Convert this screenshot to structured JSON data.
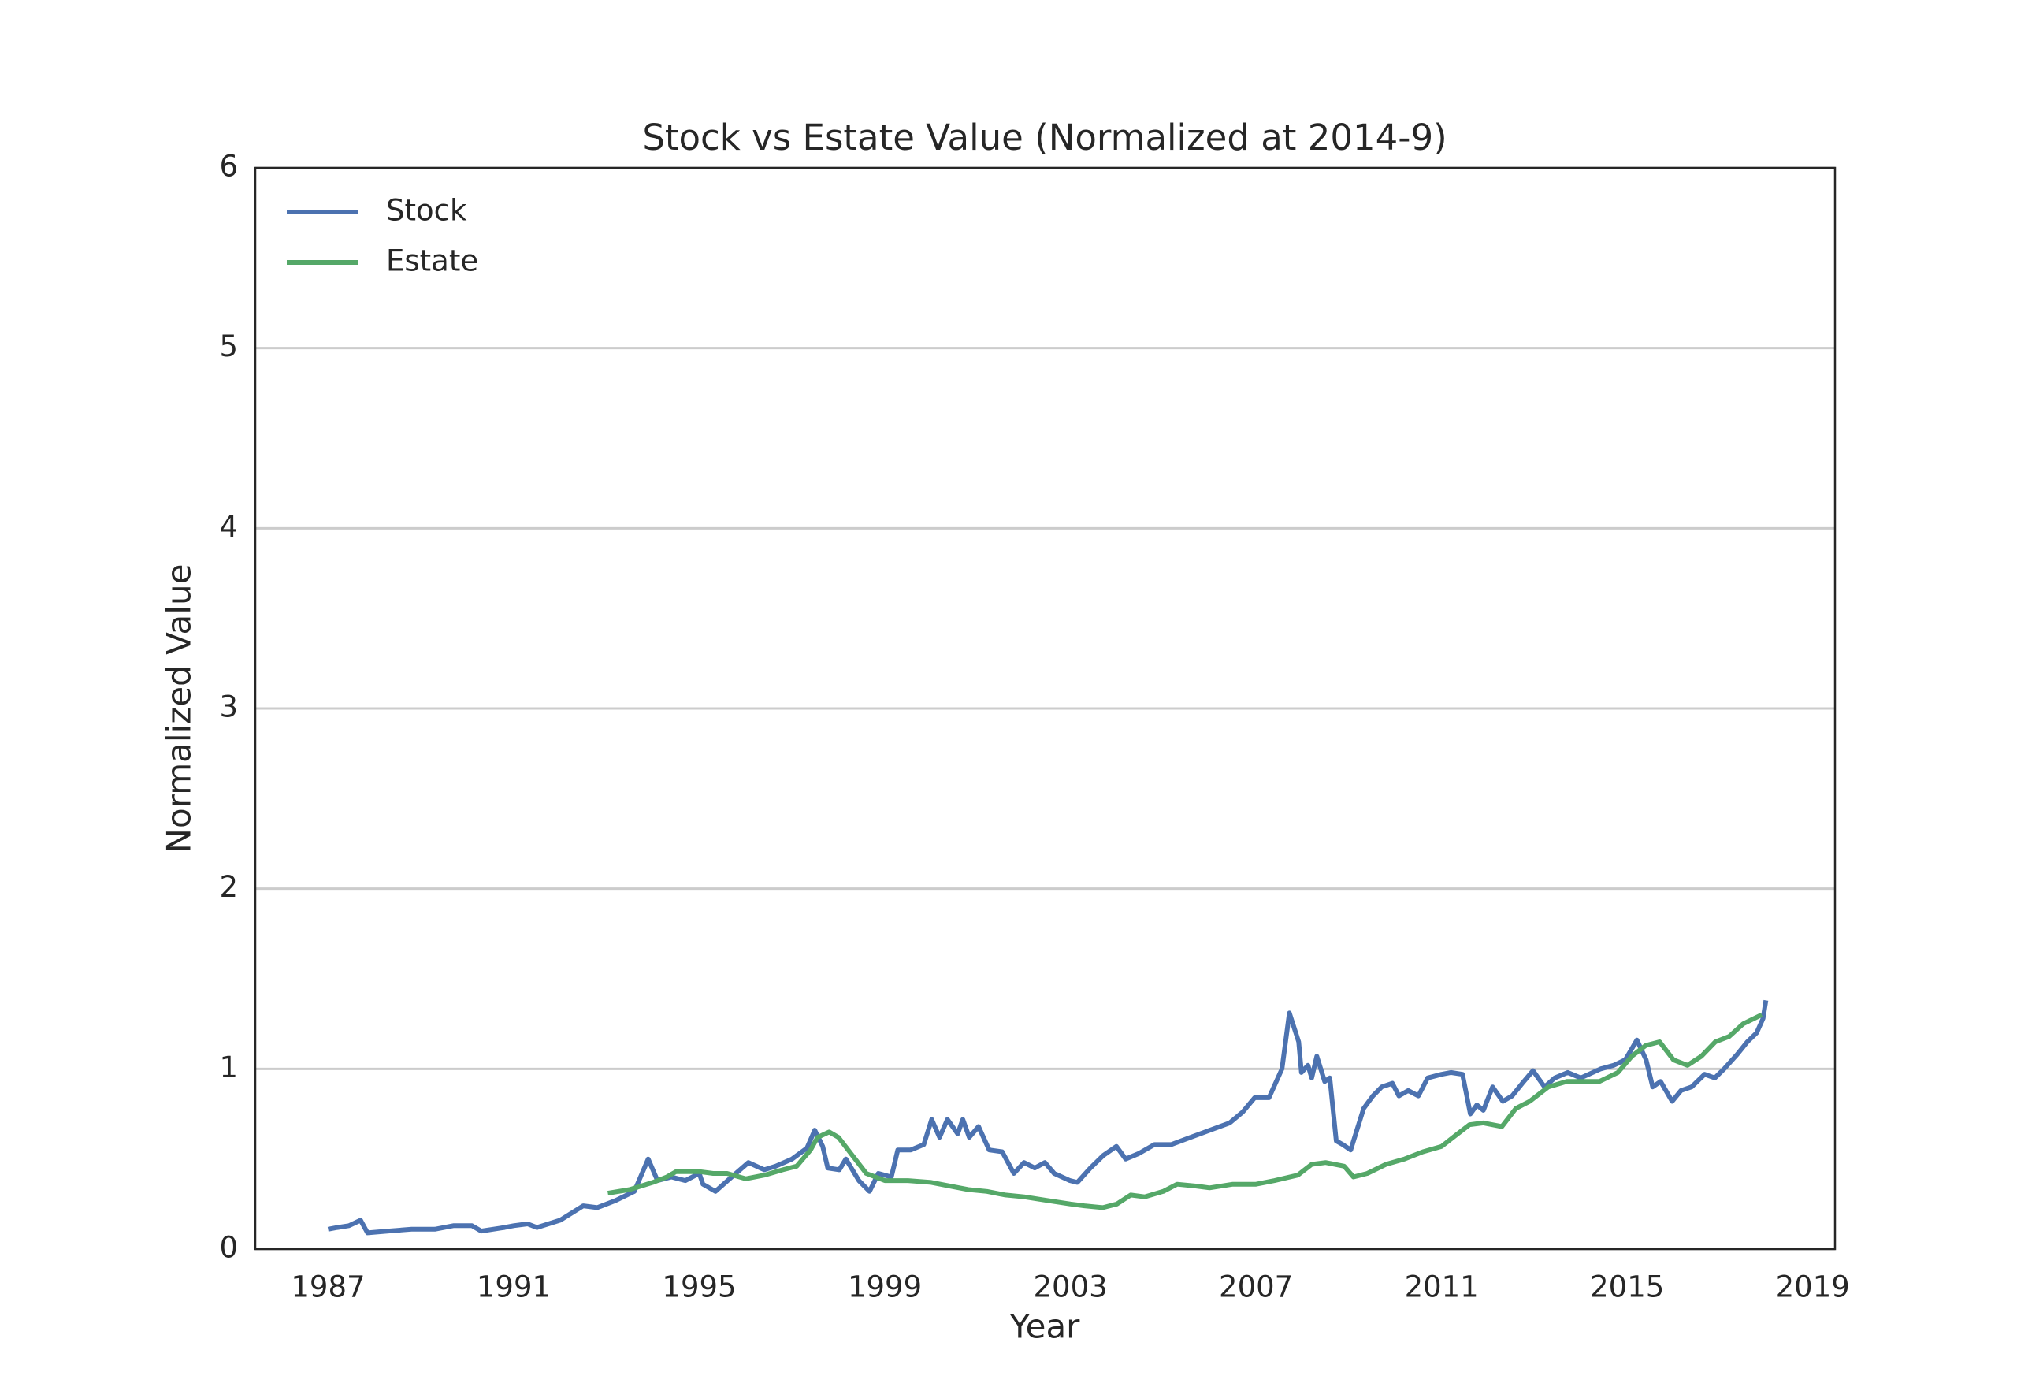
{
  "chart_data": {
    "type": "line",
    "title": "Stock vs Estate Value (Normalized at 2014-9)",
    "x_label": "Year",
    "y_label": "Normalized Value",
    "xlim": [
      1985.43,
      2019.48
    ],
    "xticks": [
      1987,
      1991,
      1995,
      1999,
      2003,
      2007,
      2011,
      2015,
      2019
    ],
    "ylim": [
      0,
      6
    ],
    "yticks": [
      0,
      1,
      2,
      3,
      4,
      5,
      6
    ],
    "grid": true,
    "legend": "upper left",
    "series": [
      {
        "name": "Stock",
        "color": "#4c72b0",
        "x": [
          1987.0,
          1987.2,
          1987.45,
          1987.7,
          1987.85,
          1988.3,
          1988.8,
          1989.3,
          1989.7,
          1990.1,
          1990.3,
          1990.8,
          1991.0,
          1991.3,
          1991.5,
          1992.0,
          1992.5,
          1992.8,
          1993.2,
          1993.6,
          1993.9,
          1994.1,
          1994.4,
          1994.7,
          1995.0,
          1995.08,
          1995.35,
          1995.7,
          1996.06,
          1996.4,
          1996.65,
          1997.0,
          1997.32,
          1997.49,
          1997.66,
          1997.77,
          1998.02,
          1998.16,
          1998.44,
          1998.67,
          1998.86,
          1999.14,
          1999.28,
          1999.56,
          1999.84,
          2000.01,
          2000.18,
          2000.35,
          2000.57,
          2000.68,
          2000.82,
          2001.02,
          2001.25,
          2001.53,
          2001.78,
          2002.0,
          2002.23,
          2002.45,
          2002.65,
          2002.99,
          2003.15,
          2003.43,
          2003.71,
          2003.99,
          2004.19,
          2004.47,
          2004.81,
          2005.17,
          2005.59,
          2006.01,
          2006.43,
          2006.71,
          2006.97,
          2007.28,
          2007.56,
          2007.72,
          2007.92,
          2007.98,
          2008.12,
          2008.2,
          2008.31,
          2008.48,
          2008.59,
          2008.73,
          2008.87,
          2009.04,
          2009.32,
          2009.52,
          2009.71,
          2009.94,
          2010.08,
          2010.28,
          2010.5,
          2010.7,
          2011.0,
          2011.2,
          2011.45,
          2011.62,
          2011.76,
          2011.9,
          2012.1,
          2012.32,
          2012.52,
          2012.74,
          2012.97,
          2013.22,
          2013.44,
          2013.72,
          2014.0,
          2014.43,
          2014.71,
          2014.96,
          2015.21,
          2015.41,
          2015.55,
          2015.72,
          2015.97,
          2016.16,
          2016.39,
          2016.67,
          2016.89,
          2017.09,
          2017.37,
          2017.59,
          2017.79,
          2017.93,
          2017.99
        ],
        "values": [
          0.11,
          0.12,
          0.13,
          0.16,
          0.09,
          0.1,
          0.11,
          0.11,
          0.13,
          0.13,
          0.1,
          0.12,
          0.13,
          0.14,
          0.12,
          0.16,
          0.24,
          0.23,
          0.27,
          0.32,
          0.5,
          0.38,
          0.4,
          0.38,
          0.42,
          0.36,
          0.32,
          0.4,
          0.48,
          0.44,
          0.46,
          0.5,
          0.56,
          0.66,
          0.57,
          0.45,
          0.44,
          0.5,
          0.38,
          0.32,
          0.42,
          0.4,
          0.55,
          0.55,
          0.58,
          0.72,
          0.62,
          0.72,
          0.64,
          0.72,
          0.62,
          0.68,
          0.55,
          0.54,
          0.42,
          0.48,
          0.45,
          0.48,
          0.42,
          0.38,
          0.37,
          0.45,
          0.52,
          0.57,
          0.5,
          0.53,
          0.58,
          0.58,
          0.62,
          0.66,
          0.7,
          0.76,
          0.84,
          0.84,
          1.0,
          1.31,
          1.15,
          0.98,
          1.02,
          0.95,
          1.07,
          0.93,
          0.95,
          0.6,
          0.58,
          0.55,
          0.78,
          0.85,
          0.9,
          0.92,
          0.85,
          0.88,
          0.85,
          0.95,
          0.97,
          0.98,
          0.97,
          0.75,
          0.8,
          0.77,
          0.9,
          0.82,
          0.85,
          0.92,
          0.99,
          0.9,
          0.95,
          0.98,
          0.95,
          1.0,
          1.02,
          1.05,
          1.16,
          1.05,
          0.9,
          0.93,
          0.82,
          0.88,
          0.9,
          0.97,
          0.95,
          1.0,
          1.08,
          1.15,
          1.2,
          1.28,
          1.38
        ]
      },
      {
        "name": "Estate",
        "color": "#55a868",
        "x": [
          1993.03,
          1993.5,
          1994.0,
          1994.3,
          1994.5,
          1995.0,
          1995.3,
          1995.6,
          1996.0,
          1996.4,
          1996.8,
          1997.1,
          1997.4,
          1997.55,
          1997.8,
          1998.0,
          1998.3,
          1998.6,
          1999.0,
          1999.5,
          2000.0,
          2000.4,
          2000.8,
          2001.2,
          2001.6,
          2002.0,
          2002.5,
          2003.0,
          2003.3,
          2003.7,
          2004.0,
          2004.3,
          2004.6,
          2005.0,
          2005.3,
          2005.7,
          2006.0,
          2006.5,
          2007.0,
          2007.4,
          2007.9,
          2008.2,
          2008.5,
          2008.9,
          2009.1,
          2009.4,
          2009.8,
          2010.2,
          2010.6,
          2011.0,
          2011.3,
          2011.6,
          2011.9,
          2012.3,
          2012.6,
          2012.9,
          2013.3,
          2013.7,
          2014.0,
          2014.4,
          2014.8,
          2015.1,
          2015.4,
          2015.7,
          2016.0,
          2016.3,
          2016.6,
          2016.9,
          2017.2,
          2017.5,
          2017.9
        ],
        "values": [
          0.31,
          0.33,
          0.37,
          0.4,
          0.43,
          0.43,
          0.42,
          0.42,
          0.39,
          0.41,
          0.44,
          0.46,
          0.55,
          0.62,
          0.65,
          0.62,
          0.52,
          0.42,
          0.38,
          0.38,
          0.37,
          0.35,
          0.33,
          0.32,
          0.3,
          0.29,
          0.27,
          0.25,
          0.24,
          0.23,
          0.25,
          0.3,
          0.29,
          0.32,
          0.36,
          0.35,
          0.34,
          0.36,
          0.36,
          0.38,
          0.41,
          0.47,
          0.48,
          0.46,
          0.4,
          0.42,
          0.47,
          0.5,
          0.54,
          0.57,
          0.63,
          0.69,
          0.7,
          0.68,
          0.78,
          0.82,
          0.9,
          0.93,
          0.93,
          0.93,
          0.98,
          1.07,
          1.13,
          1.15,
          1.05,
          1.02,
          1.07,
          1.15,
          1.18,
          1.25,
          1.3
        ]
      }
    ]
  }
}
